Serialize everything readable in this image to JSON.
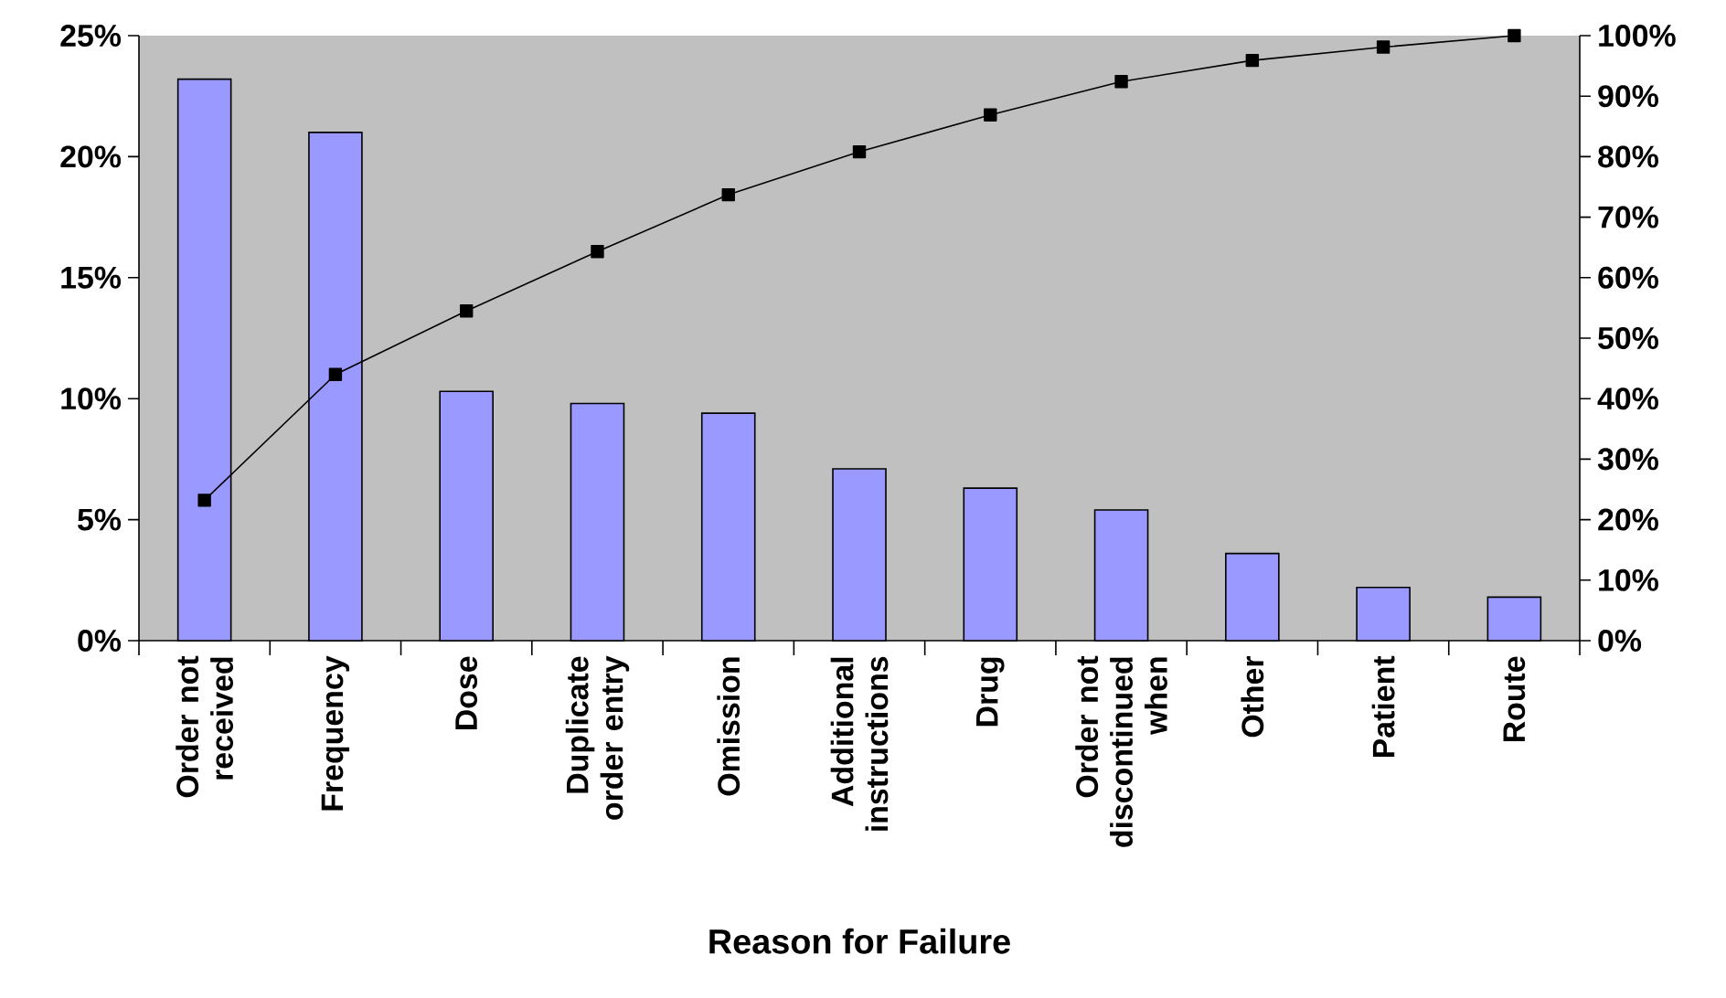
{
  "chart_data": {
    "type": "bar",
    "xlabel": "Reason for Failure",
    "categories": [
      "Order not received",
      "Frequency",
      "Dose",
      "Duplicate order entry",
      "Omission",
      "Additional instructions",
      "Drug",
      "Order not discontinued when",
      "Other",
      "Patient",
      "Route"
    ],
    "series": [
      {
        "color": "#9999ff",
        "values": [
          23.2,
          21.0,
          10.3,
          9.8,
          9.4,
          7.1,
          6.3,
          5.4,
          3.6,
          2.2,
          1.8
        ]
      },
      {
        "type": "line",
        "axis": "y2",
        "color": "#000000",
        "values": [
          23.2,
          44.0,
          54.5,
          64.3,
          73.7,
          80.8,
          86.9,
          92.4,
          95.9,
          98.1,
          100
        ]
      }
    ],
    "marker": "square",
    "ylim": [
      0,
      25
    ],
    "yticks": [
      {
        "value": 0,
        "label": "0%"
      },
      {
        "value": 5,
        "label": "5%"
      },
      {
        "value": 10,
        "label": "10%"
      },
      {
        "value": 15,
        "label": "15%"
      },
      {
        "value": 20,
        "label": "20%"
      },
      {
        "value": 25,
        "label": "25%"
      }
    ],
    "y2lim": [
      0,
      100
    ],
    "y2ticks": [
      {
        "value": 0,
        "label": "0%"
      },
      {
        "value": 10,
        "label": "10%"
      },
      {
        "value": 20,
        "label": "20%"
      },
      {
        "value": 30,
        "label": "30%"
      },
      {
        "value": 40,
        "label": "40%"
      },
      {
        "value": 50,
        "label": "50%"
      },
      {
        "value": 60,
        "label": "60%"
      },
      {
        "value": 70,
        "label": "70%"
      },
      {
        "value": 80,
        "label": "80%"
      },
      {
        "value": 90,
        "label": "90%"
      },
      {
        "value": 100,
        "label": "100%"
      }
    ]
  }
}
